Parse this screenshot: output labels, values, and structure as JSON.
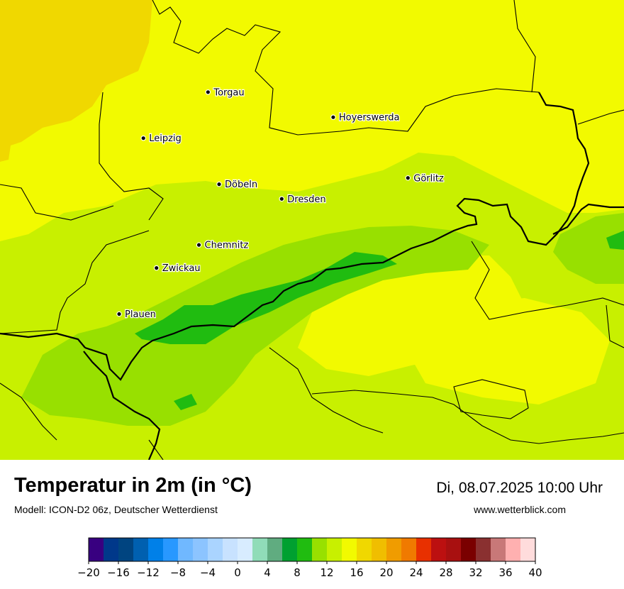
{
  "map": {
    "cities": [
      {
        "name": "Torgau",
        "lon": 13.01,
        "lat": 51.56
      },
      {
        "name": "Leipzig",
        "lon": 12.37,
        "lat": 51.34
      },
      {
        "name": "Hoyerswerda",
        "lon": 14.25,
        "lat": 51.44
      },
      {
        "name": "Görlitz",
        "lon": 14.99,
        "lat": 51.15
      },
      {
        "name": "Döbeln",
        "lon": 13.12,
        "lat": 51.12
      },
      {
        "name": "Dresden",
        "lon": 13.74,
        "lat": 51.05
      },
      {
        "name": "Chemnitz",
        "lon": 12.92,
        "lat": 50.83
      },
      {
        "name": "Zwickau",
        "lon": 12.5,
        "lat": 50.72
      },
      {
        "name": "Plauen",
        "lon": 12.13,
        "lat": 50.5
      }
    ]
  },
  "footer": {
    "title": "Temperatur in 2m (in °C)",
    "subtitle": "Modell: ICON-D2 06z, Deutscher Wetterdienst",
    "datetime": "Di, 08.07.2025 10:00 Uhr",
    "website": "www.wetterblick.com"
  },
  "legend": {
    "unit": "°C",
    "min": -20,
    "max": 40,
    "step": 2,
    "colors": [
      "#380080",
      "#00388a",
      "#004480",
      "#0060b0",
      "#0080e8",
      "#2898ff",
      "#70b8ff",
      "#8cc4ff",
      "#aad4ff",
      "#c8e2ff",
      "#d8ecff",
      "#90dcb8",
      "#60ac80",
      "#00a030",
      "#20bc10",
      "#98e000",
      "#c8f000",
      "#f2fa00",
      "#f0d800",
      "#f0be00",
      "#f09c00",
      "#f07a00",
      "#e83000",
      "#bc1010",
      "#a81010",
      "#7a0000",
      "#8a3030",
      "#c87878",
      "#ffb0b0",
      "#ffdcdc"
    ],
    "tick_values": [
      -20,
      -16,
      -12,
      -8,
      -4,
      0,
      4,
      8,
      12,
      16,
      20,
      24,
      28,
      32,
      36,
      40
    ],
    "tick_labels": [
      "−20",
      "−16",
      "−12",
      "−8",
      "−4",
      "0",
      "4",
      "8",
      "12",
      "16",
      "20",
      "24",
      "28",
      "32",
      "36",
      "40"
    ]
  }
}
